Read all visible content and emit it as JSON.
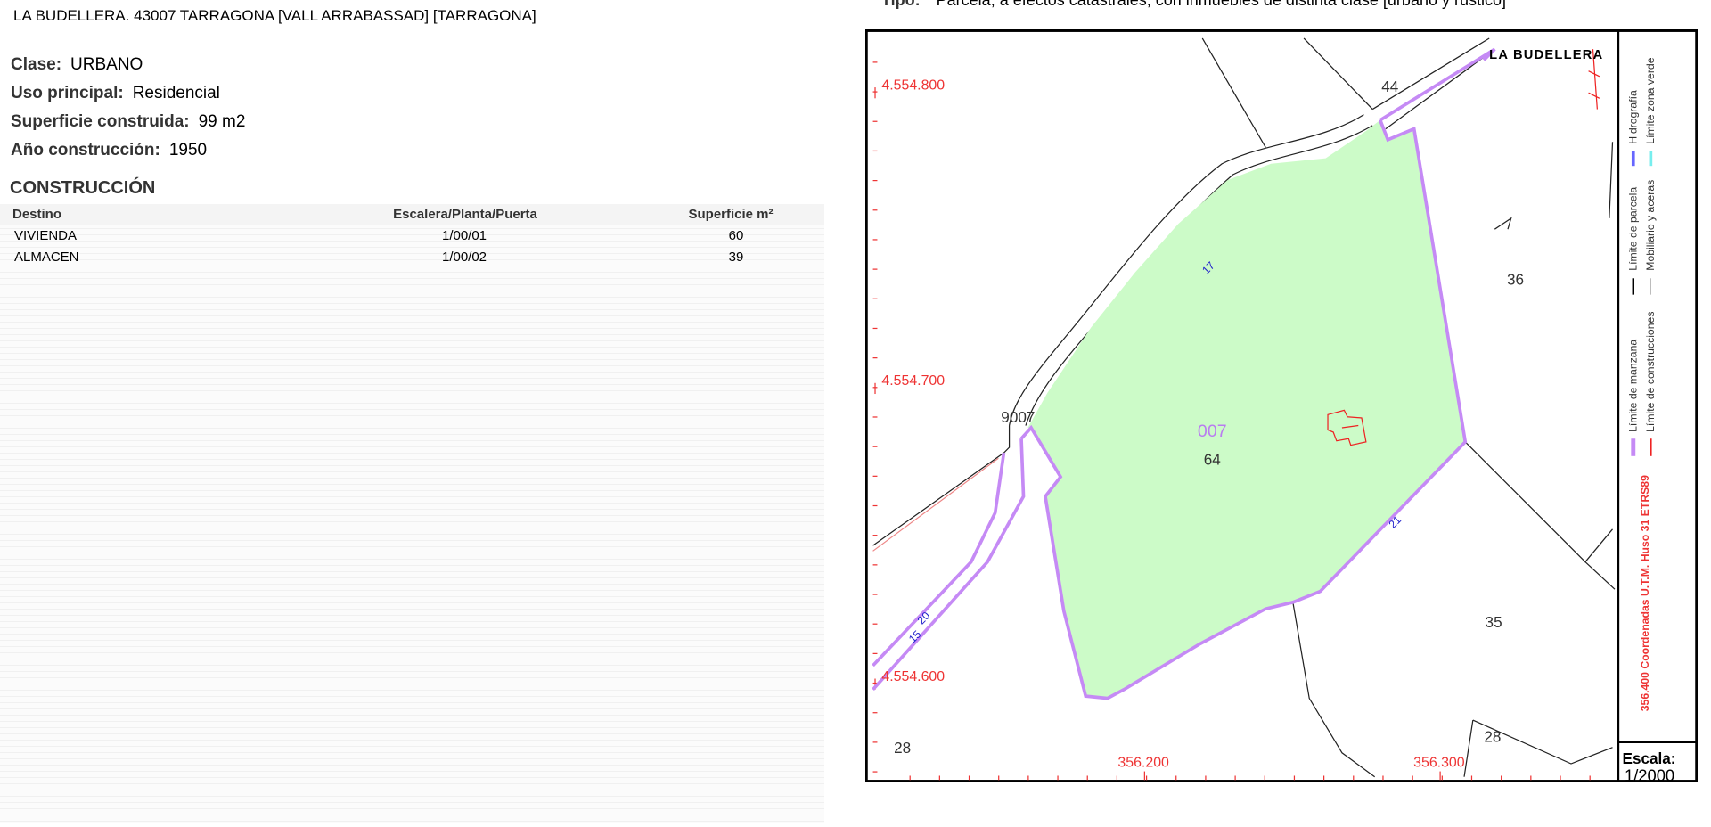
{
  "header": {
    "address": "LA BUDELLERA. 43007 TARRAGONA [VALL ARRABASSAD] [TARRAGONA]"
  },
  "details": [
    {
      "label": "Clase:",
      "value": "URBANO"
    },
    {
      "label": "Uso principal:",
      "value": "Residencial"
    },
    {
      "label": "Superficie construida:",
      "value": "99 m2"
    },
    {
      "label": "Año construcción:",
      "value": "1950"
    }
  ],
  "construction": {
    "title": "CONSTRUCCIÓN",
    "columns": [
      "Destino",
      "Escalera/Planta/Puerta",
      "Superficie m²"
    ],
    "rows": [
      [
        "VIVIENDA",
        "1/00/01",
        "60"
      ],
      [
        "ALMACEN",
        "1/00/02",
        "39"
      ]
    ]
  },
  "parcel": {
    "type_label": "Tipo:",
    "type_value": "Parcela, a efectos catastrales, con inmuebles de distinta clase [urbano y rústico]"
  },
  "map": {
    "place": "LA BUDELLERA",
    "y_coords": [
      "4.554.800",
      "4.554.700",
      "4.554.600"
    ],
    "x_coords": [
      "356.200",
      "356.300"
    ],
    "labels": [
      "44",
      "36",
      "007",
      "64",
      "9007",
      "35",
      "28",
      "28",
      "17",
      "21",
      "20",
      "15"
    ],
    "legend": [
      "Hidrografía",
      "Límite zona verde",
      "Límite de parcela",
      "Mobiliario y aceras",
      "Límite de manzana",
      "Límite de construcciones"
    ],
    "projection": "356.400 Coordenadas U.T.M. Huso 31 ETRS89",
    "scale_label": "Escala:",
    "scale_value": "1/2000"
  }
}
